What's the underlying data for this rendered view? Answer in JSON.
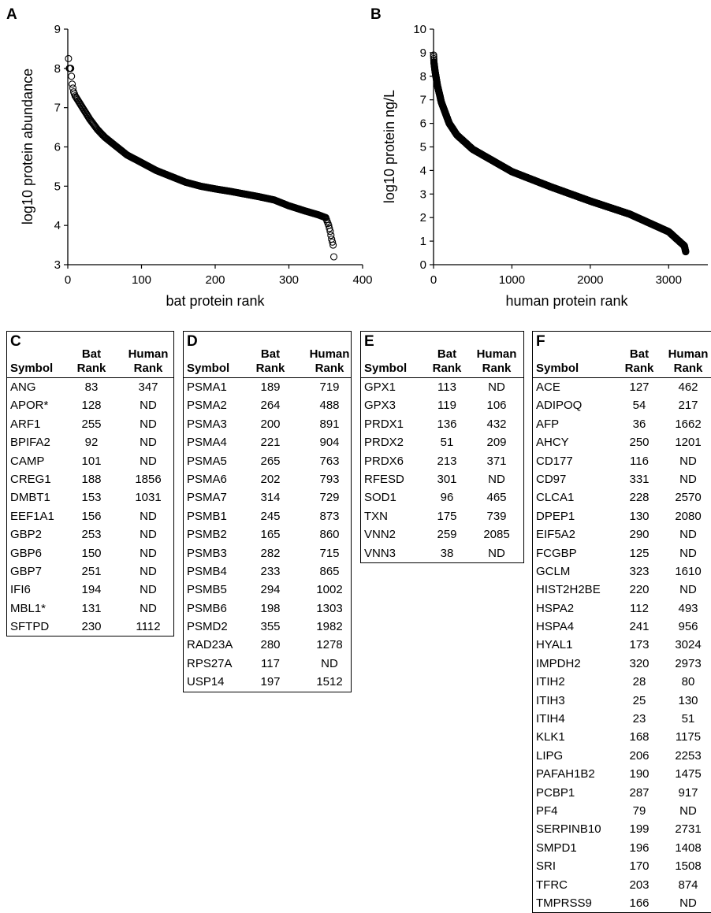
{
  "panels": {
    "A": "A",
    "B": "B"
  },
  "chart_data": [
    {
      "type": "scatter",
      "panel": "A",
      "xlabel": "bat protein rank",
      "ylabel": "log10 protein abundance",
      "xlim": [
        0,
        400
      ],
      "ylim": [
        3,
        9
      ],
      "xticks": [
        0,
        100,
        200,
        300,
        400
      ],
      "yticks": [
        3,
        4,
        5,
        6,
        7,
        8,
        9
      ],
      "n_points": 361,
      "curve": [
        [
          1,
          8.25
        ],
        [
          2,
          8.0
        ],
        [
          4,
          8.0
        ],
        [
          6,
          7.6
        ],
        [
          8,
          7.4
        ],
        [
          10,
          7.3
        ],
        [
          15,
          7.15
        ],
        [
          20,
          7.0
        ],
        [
          30,
          6.7
        ],
        [
          40,
          6.45
        ],
        [
          50,
          6.25
        ],
        [
          60,
          6.1
        ],
        [
          70,
          5.95
        ],
        [
          80,
          5.8
        ],
        [
          100,
          5.6
        ],
        [
          120,
          5.4
        ],
        [
          140,
          5.25
        ],
        [
          160,
          5.1
        ],
        [
          180,
          5.0
        ],
        [
          200,
          4.93
        ],
        [
          220,
          4.87
        ],
        [
          240,
          4.8
        ],
        [
          260,
          4.73
        ],
        [
          280,
          4.65
        ],
        [
          300,
          4.5
        ],
        [
          320,
          4.38
        ],
        [
          340,
          4.27
        ],
        [
          350,
          4.2
        ],
        [
          354,
          4.0
        ],
        [
          356,
          3.85
        ],
        [
          358,
          3.65
        ],
        [
          360,
          3.5
        ],
        [
          361,
          3.2
        ]
      ]
    },
    {
      "type": "scatter",
      "panel": "B",
      "xlabel": "human protein rank",
      "ylabel": "log10 protein ng/L",
      "xlim": [
        0,
        3500
      ],
      "ylim": [
        0,
        10
      ],
      "xticks": [
        0,
        1000,
        2000,
        3000
      ],
      "yticks": [
        0,
        1,
        2,
        3,
        4,
        5,
        6,
        7,
        8,
        9,
        10
      ],
      "n_points": 3217,
      "curve": [
        [
          1,
          8.9
        ],
        [
          5,
          8.6
        ],
        [
          20,
          8.2
        ],
        [
          50,
          7.6
        ],
        [
          100,
          6.9
        ],
        [
          200,
          6.0
        ],
        [
          300,
          5.5
        ],
        [
          500,
          4.9
        ],
        [
          1000,
          3.95
        ],
        [
          1500,
          3.3
        ],
        [
          2000,
          2.7
        ],
        [
          2500,
          2.15
        ],
        [
          3000,
          1.4
        ],
        [
          3100,
          1.1
        ],
        [
          3200,
          0.8
        ],
        [
          3217,
          0.55
        ]
      ]
    }
  ],
  "tables": [
    {
      "letter": "C",
      "headers": {
        "symbol": "Symbol",
        "bat1": "Bat",
        "bat2": "Rank",
        "human1": "Human",
        "human2": "Rank"
      },
      "rows": [
        [
          "ANG",
          "83",
          "347"
        ],
        [
          "APOR*",
          "128",
          "ND"
        ],
        [
          "ARF1",
          "255",
          "ND"
        ],
        [
          "BPIFA2",
          "92",
          "ND"
        ],
        [
          "CAMP",
          "101",
          "ND"
        ],
        [
          "CREG1",
          "188",
          "1856"
        ],
        [
          "DMBT1",
          "153",
          "1031"
        ],
        [
          "EEF1A1",
          "156",
          "ND"
        ],
        [
          "GBP2",
          "253",
          "ND"
        ],
        [
          "GBP6",
          "150",
          "ND"
        ],
        [
          "GBP7",
          "251",
          "ND"
        ],
        [
          "IFI6",
          "194",
          "ND"
        ],
        [
          "MBL1*",
          "131",
          "ND"
        ],
        [
          "SFTPD",
          "230",
          "1112"
        ]
      ]
    },
    {
      "letter": "D",
      "headers": {
        "symbol": "Symbol",
        "bat1": "Bat",
        "bat2": "Rank",
        "human1": "Human",
        "human2": "Rank"
      },
      "rows": [
        [
          "PSMA1",
          "189",
          "719"
        ],
        [
          "PSMA2",
          "264",
          "488"
        ],
        [
          "PSMA3",
          "200",
          "891"
        ],
        [
          "PSMA4",
          "221",
          "904"
        ],
        [
          "PSMA5",
          "265",
          "763"
        ],
        [
          "PSMA6",
          "202",
          "793"
        ],
        [
          "PSMA7",
          "314",
          "729"
        ],
        [
          "PSMB1",
          "245",
          "873"
        ],
        [
          "PSMB2",
          "165",
          "860"
        ],
        [
          "PSMB3",
          "282",
          "715"
        ],
        [
          "PSMB4",
          "233",
          "865"
        ],
        [
          "PSMB5",
          "294",
          "1002"
        ],
        [
          "PSMB6",
          "198",
          "1303"
        ],
        [
          "PSMD2",
          "355",
          "1982"
        ],
        [
          "RAD23A",
          "280",
          "1278"
        ],
        [
          "RPS27A",
          "117",
          "ND"
        ],
        [
          "USP14",
          "197",
          "1512"
        ]
      ]
    },
    {
      "letter": "E",
      "headers": {
        "symbol": "Symbol",
        "bat1": "Bat",
        "bat2": "Rank",
        "human1": "Human",
        "human2": "Rank"
      },
      "rows": [
        [
          "GPX1",
          "113",
          "ND"
        ],
        [
          "GPX3",
          "119",
          "106"
        ],
        [
          "PRDX1",
          "136",
          "432"
        ],
        [
          "PRDX2",
          "51",
          "209"
        ],
        [
          "PRDX6",
          "213",
          "371"
        ],
        [
          "RFESD",
          "301",
          "ND"
        ],
        [
          "SOD1",
          "96",
          "465"
        ],
        [
          "TXN",
          "175",
          "739"
        ],
        [
          "VNN2",
          "259",
          "2085"
        ],
        [
          "VNN3",
          "38",
          "ND"
        ]
      ]
    },
    {
      "letter": "F",
      "headers": {
        "symbol": "Symbol",
        "bat1": "Bat",
        "bat2": "Rank",
        "human1": "Human",
        "human2": "Rank"
      },
      "rows": [
        [
          "ACE",
          "127",
          "462"
        ],
        [
          "ADIPOQ",
          "54",
          "217"
        ],
        [
          "AFP",
          "36",
          "1662"
        ],
        [
          "AHCY",
          "250",
          "1201"
        ],
        [
          "CD177",
          "116",
          "ND"
        ],
        [
          "CD97",
          "331",
          "ND"
        ],
        [
          "CLCA1",
          "228",
          "2570"
        ],
        [
          "DPEP1",
          "130",
          "2080"
        ],
        [
          "EIF5A2",
          "290",
          "ND"
        ],
        [
          "FCGBP",
          "125",
          "ND"
        ],
        [
          "GCLM",
          "323",
          "1610"
        ],
        [
          "HIST2H2BE",
          "220",
          "ND"
        ],
        [
          "HSPA2",
          "112",
          "493"
        ],
        [
          "HSPA4",
          "241",
          "956"
        ],
        [
          "HYAL1",
          "173",
          "3024"
        ],
        [
          "IMPDH2",
          "320",
          "2973"
        ],
        [
          "ITIH2",
          "28",
          "80"
        ],
        [
          "ITIH3",
          "25",
          "130"
        ],
        [
          "ITIH4",
          "23",
          "51"
        ],
        [
          "KLK1",
          "168",
          "1175"
        ],
        [
          "LIPG",
          "206",
          "2253"
        ],
        [
          "PAFAH1B2",
          "190",
          "1475"
        ],
        [
          "PCBP1",
          "287",
          "917"
        ],
        [
          "PF4",
          "79",
          "ND"
        ],
        [
          "SERPINB10",
          "199",
          "2731"
        ],
        [
          "SMPD1",
          "196",
          "1408"
        ],
        [
          "SRI",
          "170",
          "1508"
        ],
        [
          "TFRC",
          "203",
          "874"
        ],
        [
          "TMPRSS9",
          "166",
          "ND"
        ]
      ]
    }
  ]
}
